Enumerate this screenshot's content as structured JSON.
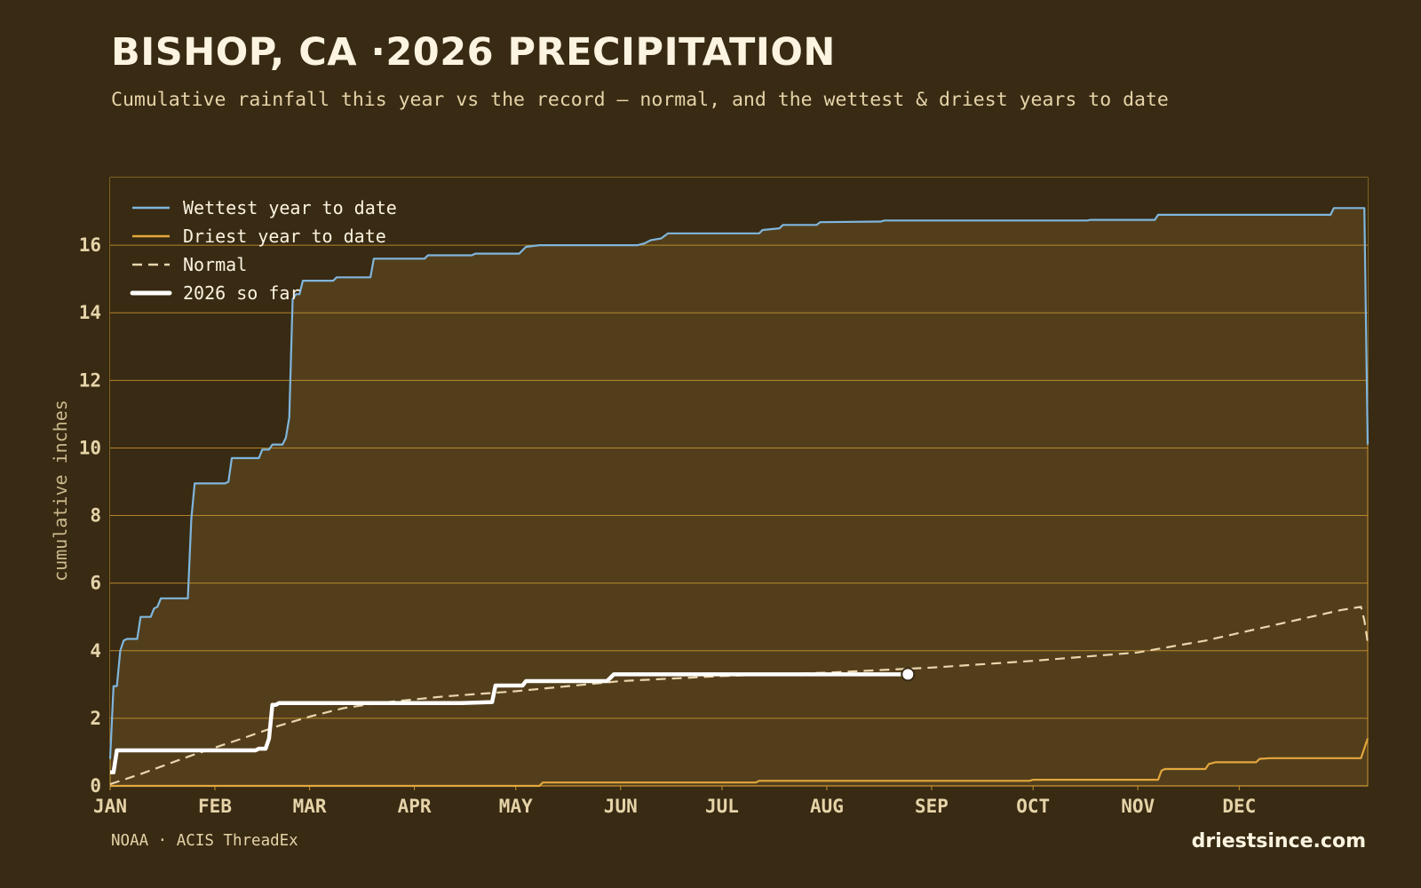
{
  "header": {
    "title": "BISHOP, CA ·2026 PRECIPITATION",
    "subtitle": "Cumulative rainfall this year vs the record — normal, and the wettest & driest years to date"
  },
  "footer": {
    "source": "NOAA · ACIS ThreadEx",
    "brand": "driestsince.com"
  },
  "colors": {
    "background": "#382a13",
    "plot_fill": "#533e1c",
    "grid": "#c9962f",
    "wettest": "#7fb6dc",
    "driest": "#e3a73c",
    "normal": "#e9d6ad",
    "current": "#ffffff"
  },
  "chart_data": {
    "type": "line",
    "title": "BISHOP, CA ·2026 PRECIPITATION",
    "subtitle": "Cumulative rainfall this year vs the record — normal, and the wettest & driest years to date",
    "xlabel": "",
    "ylabel": "cumulative inches",
    "x_unit": "day of year",
    "xlim": [
      1,
      366
    ],
    "ylim": [
      0,
      18
    ],
    "y_ticks": [
      0,
      2,
      4,
      6,
      8,
      10,
      12,
      14,
      16
    ],
    "x_ticks": [
      {
        "label": "JAN",
        "day": 1
      },
      {
        "label": "FEB",
        "day": 32
      },
      {
        "label": "MAR",
        "day": 60
      },
      {
        "label": "APR",
        "day": 91
      },
      {
        "label": "MAY",
        "day": 121
      },
      {
        "label": "JUN",
        "day": 152
      },
      {
        "label": "JUL",
        "day": 182
      },
      {
        "label": "AUG",
        "day": 213
      },
      {
        "label": "SEP",
        "day": 244
      },
      {
        "label": "OCT",
        "day": 274
      },
      {
        "label": "NOV",
        "day": 305
      },
      {
        "label": "DEC",
        "day": 335
      }
    ],
    "grid": true,
    "legend_position": "top-left",
    "series": [
      {
        "name": "Wettest year to date",
        "style": "solid",
        "color": "#7fb6dc",
        "points": [
          [
            1,
            0.8
          ],
          [
            2,
            2.95
          ],
          [
            3,
            2.95
          ],
          [
            4,
            4.0
          ],
          [
            5,
            4.3
          ],
          [
            6,
            4.35
          ],
          [
            9,
            4.35
          ],
          [
            10,
            5.0
          ],
          [
            13,
            5.0
          ],
          [
            14,
            5.25
          ],
          [
            15,
            5.3
          ],
          [
            16,
            5.55
          ],
          [
            24,
            5.55
          ],
          [
            25,
            7.9
          ],
          [
            26,
            8.95
          ],
          [
            35,
            8.95
          ],
          [
            36,
            9.0
          ],
          [
            37,
            9.7
          ],
          [
            45,
            9.7
          ],
          [
            46,
            9.95
          ],
          [
            48,
            9.95
          ],
          [
            49,
            10.1
          ],
          [
            52,
            10.1
          ],
          [
            53,
            10.3
          ],
          [
            54,
            10.9
          ],
          [
            55,
            14.4
          ],
          [
            56,
            14.55
          ],
          [
            57,
            14.55
          ],
          [
            58,
            14.95
          ],
          [
            67,
            14.95
          ],
          [
            68,
            15.05
          ],
          [
            78,
            15.05
          ],
          [
            79,
            15.6
          ],
          [
            94,
            15.6
          ],
          [
            95,
            15.7
          ],
          [
            108,
            15.7
          ],
          [
            109,
            15.75
          ],
          [
            122,
            15.75
          ],
          [
            123,
            15.85
          ],
          [
            124,
            15.95
          ],
          [
            128,
            16.0
          ],
          [
            157,
            16.0
          ],
          [
            159,
            16.05
          ],
          [
            161,
            16.15
          ],
          [
            164,
            16.2
          ],
          [
            166,
            16.35
          ],
          [
            193,
            16.35
          ],
          [
            194,
            16.45
          ],
          [
            199,
            16.5
          ],
          [
            200,
            16.6
          ],
          [
            210,
            16.6
          ],
          [
            211,
            16.68
          ],
          [
            229,
            16.7
          ],
          [
            230,
            16.73
          ],
          [
            290,
            16.73
          ],
          [
            291,
            16.75
          ],
          [
            310,
            16.75
          ],
          [
            311,
            16.9
          ],
          [
            362,
            16.9
          ],
          [
            363,
            17.1
          ],
          [
            372,
            17.1
          ],
          [
            373,
            10.1
          ]
        ]
      },
      {
        "name": "Driest year to date",
        "style": "solid",
        "color": "#e3a73c",
        "points": [
          [
            1,
            0.0
          ],
          [
            128,
            0.0
          ],
          [
            129,
            0.1
          ],
          [
            192,
            0.1
          ],
          [
            193,
            0.15
          ],
          [
            273,
            0.15
          ],
          [
            274,
            0.18
          ],
          [
            311,
            0.18
          ],
          [
            312,
            0.45
          ],
          [
            313,
            0.5
          ],
          [
            325,
            0.5
          ],
          [
            326,
            0.65
          ],
          [
            328,
            0.7
          ],
          [
            340,
            0.7
          ],
          [
            341,
            0.8
          ],
          [
            344,
            0.82
          ],
          [
            371,
            0.82
          ],
          [
            373,
            1.4
          ]
        ]
      },
      {
        "name": "Normal",
        "style": "dashed",
        "color": "#e9d6ad",
        "points": [
          [
            1,
            0.05
          ],
          [
            10,
            0.35
          ],
          [
            25,
            0.9
          ],
          [
            40,
            1.4
          ],
          [
            50,
            1.75
          ],
          [
            60,
            2.05
          ],
          [
            70,
            2.3
          ],
          [
            80,
            2.45
          ],
          [
            100,
            2.65
          ],
          [
            121,
            2.8
          ],
          [
            152,
            3.1
          ],
          [
            182,
            3.25
          ],
          [
            213,
            3.35
          ],
          [
            244,
            3.5
          ],
          [
            274,
            3.7
          ],
          [
            305,
            3.95
          ],
          [
            325,
            4.3
          ],
          [
            345,
            4.75
          ],
          [
            365,
            5.2
          ],
          [
            371,
            5.3
          ],
          [
            372,
            4.9
          ],
          [
            373,
            4.25
          ]
        ]
      },
      {
        "name": "2026 so far",
        "style": "solid-thick",
        "color": "#ffffff",
        "points": [
          [
            1,
            0.4
          ],
          [
            2,
            0.4
          ],
          [
            3,
            1.05
          ],
          [
            44,
            1.05
          ],
          [
            45,
            1.1
          ],
          [
            47,
            1.1
          ],
          [
            48,
            1.4
          ],
          [
            49,
            2.4
          ],
          [
            50,
            2.4
          ],
          [
            51,
            2.45
          ],
          [
            105,
            2.45
          ],
          [
            114,
            2.48
          ],
          [
            115,
            2.97
          ],
          [
            123,
            2.97
          ],
          [
            124,
            3.1
          ],
          [
            148,
            3.1
          ],
          [
            150,
            3.3
          ],
          [
            237,
            3.3
          ]
        ]
      }
    ]
  }
}
